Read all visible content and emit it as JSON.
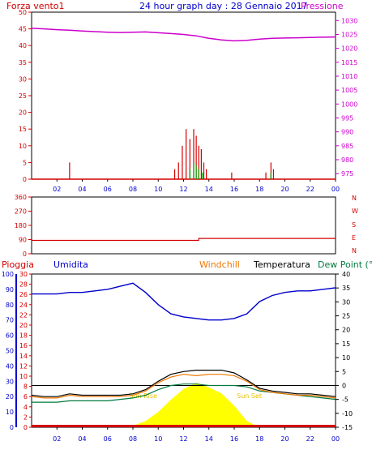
{
  "colors": {
    "red": "#d40000",
    "magenta": "#cc00cc",
    "blue": "#0000cc",
    "orange": "#ee7700",
    "black": "#000000",
    "green": "#007a3d",
    "green_bars": "#00aa00",
    "yellow": "#ffff00",
    "frame": "#000000"
  },
  "chart_data": [
    {
      "panel": "wind_pressure",
      "type": "line",
      "title": "24 hour graph day : 28 Gennaio 2017",
      "left_label": "Forza vento1",
      "right_label": "Pressione",
      "x_ticks": [
        "02",
        "04",
        "06",
        "08",
        "10",
        "12",
        "14",
        "16",
        "18",
        "20",
        "22",
        "00"
      ],
      "y_left_ticks": [
        "0",
        "5",
        "10",
        "15",
        "20",
        "25",
        "30",
        "35",
        "40",
        "45",
        "50"
      ],
      "y_right_ticks": [
        "975",
        "980",
        "985",
        "990",
        "995",
        "1000",
        "1005",
        "1010",
        "1015",
        "1020",
        "1025",
        "1030"
      ],
      "xlim": [
        0,
        24
      ],
      "ylim_left": [
        0,
        50
      ],
      "ylim_right": [
        973,
        1033
      ],
      "pressure": {
        "hours": [
          0,
          1,
          2,
          3,
          4,
          5,
          6,
          7,
          8,
          9,
          10,
          11,
          12,
          13,
          14,
          15,
          16,
          17,
          18,
          19,
          20,
          21,
          22,
          23,
          24
        ],
        "hpa": [
          1027.2,
          1027.0,
          1026.7,
          1026.5,
          1026.2,
          1026.0,
          1025.8,
          1025.7,
          1025.8,
          1025.9,
          1025.6,
          1025.3,
          1025.0,
          1024.5,
          1023.6,
          1023.0,
          1022.7,
          1022.9,
          1023.3,
          1023.6,
          1023.7,
          1023.8,
          1023.9,
          1024.0,
          1024.1
        ]
      },
      "wind_force": [
        [
          3.0,
          5
        ],
        [
          11.3,
          3
        ],
        [
          11.6,
          5
        ],
        [
          11.9,
          10
        ],
        [
          12.2,
          15
        ],
        [
          12.5,
          12
        ],
        [
          12.8,
          15
        ],
        [
          13.0,
          13
        ],
        [
          13.2,
          10
        ],
        [
          13.4,
          9
        ],
        [
          13.6,
          5
        ],
        [
          13.8,
          3
        ],
        [
          15.8,
          2
        ],
        [
          18.5,
          2
        ],
        [
          18.9,
          5
        ],
        [
          19.1,
          3
        ]
      ],
      "wind_green": [
        [
          12.5,
          3
        ],
        [
          12.8,
          5
        ],
        [
          13.0,
          4
        ],
        [
          13.2,
          3
        ],
        [
          13.5,
          2
        ],
        [
          18.9,
          2
        ]
      ]
    },
    {
      "panel": "wind_direction",
      "type": "line",
      "y_left_ticks": [
        "0",
        "90",
        "180",
        "270",
        "360"
      ],
      "right_labels": [
        "N",
        "W",
        "S",
        "E",
        "N"
      ],
      "ylim": [
        0,
        360
      ],
      "hours": [
        0,
        13.2,
        13.2,
        24
      ],
      "degrees": [
        85,
        85,
        97,
        97
      ]
    },
    {
      "panel": "rain_humidity_temp",
      "type": "line",
      "labels": {
        "rain": "Pioggia",
        "humidity": "Umidita",
        "windchill": "Windchill",
        "temperature": "Temperatura",
        "dew_point": "Dew Point (°C"
      },
      "annotations": {
        "sunrise": "Sun Rise",
        "sunset": "Sun Set"
      },
      "y_humidity_ticks": [
        "0",
        "10",
        "20",
        "30",
        "40",
        "50",
        "60",
        "70",
        "80",
        "90",
        "100"
      ],
      "y_rain_ticks": [
        "0",
        "2",
        "4",
        "6",
        "8",
        "10",
        "12",
        "14",
        "16",
        "18",
        "20",
        "22",
        "24",
        "26",
        "28",
        "30"
      ],
      "y_temp_ticks": [
        "-15",
        "-10",
        "-5",
        "0",
        "5",
        "10",
        "15",
        "20",
        "25",
        "30",
        "35",
        "40"
      ],
      "ylim_humidity": [
        0,
        100
      ],
      "ylim_temp": [
        -15,
        40
      ],
      "hours": [
        0,
        1,
        2,
        3,
        4,
        5,
        6,
        7,
        8,
        9,
        10,
        11,
        12,
        13,
        14,
        15,
        16,
        17,
        18,
        19,
        20,
        21,
        22,
        23,
        24
      ],
      "humidity": [
        87,
        87,
        87,
        88,
        88,
        89,
        90,
        92,
        94,
        88,
        80,
        74,
        72,
        71,
        70,
        70,
        71,
        74,
        82,
        86,
        88,
        89,
        89,
        90,
        91
      ],
      "temperature": [
        -3.5,
        -4,
        -4,
        -3,
        -3.5,
        -3.5,
        -3.5,
        -3.5,
        -3,
        -1.5,
        1.5,
        4,
        5,
        5.5,
        5.5,
        5.5,
        4.5,
        2,
        -1,
        -2,
        -2.5,
        -3,
        -3,
        -3.5,
        -4
      ],
      "windchill": [
        -4,
        -4.5,
        -4.5,
        -3.5,
        -4,
        -4,
        -4,
        -4,
        -3.5,
        -2,
        1,
        3,
        4,
        3.5,
        4,
        4,
        3.5,
        1.5,
        -1.5,
        -2.5,
        -3,
        -3.5,
        -3.5,
        -4,
        -4.5
      ],
      "dew_point": [
        -6,
        -6,
        -6,
        -5.5,
        -5.5,
        -5.5,
        -5.5,
        -5,
        -4.5,
        -3.5,
        -1.5,
        0,
        0.5,
        0.5,
        0,
        0,
        0,
        -0.5,
        -2,
        -2.5,
        -3,
        -3.5,
        -4,
        -4.5,
        -5
      ],
      "solar": [
        0,
        0,
        0,
        0,
        0,
        0,
        0,
        0,
        1,
        4,
        10,
        18,
        25,
        29,
        26,
        22,
        14,
        4,
        0,
        0,
        0,
        0,
        0,
        0,
        0
      ],
      "rain": [
        1,
        1,
        1,
        1,
        1,
        1,
        1,
        1,
        1,
        1,
        1,
        1,
        1,
        1,
        1,
        1,
        1,
        1,
        1,
        1,
        1,
        1,
        1,
        1,
        1
      ]
    }
  ]
}
